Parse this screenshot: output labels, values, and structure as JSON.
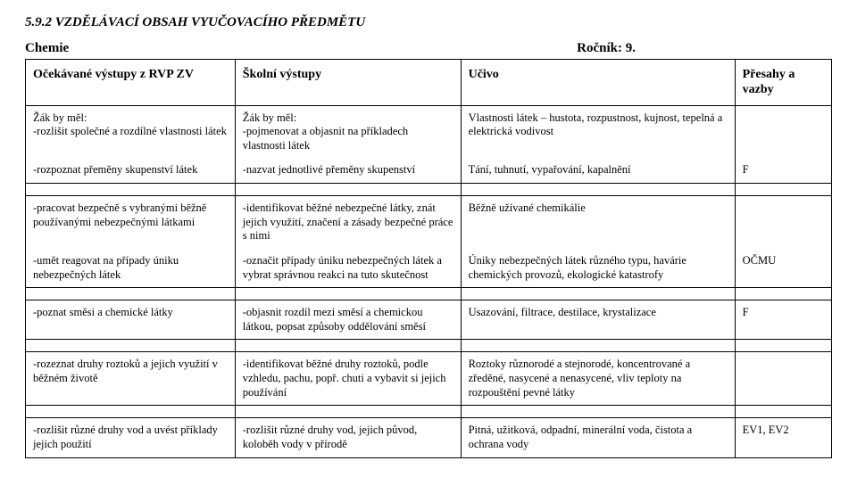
{
  "heading": "5.9.2  VZDĚLÁVACÍ OBSAH VYUČOVACÍHO PŘEDMĚTU",
  "subject": "Chemie",
  "grade_label": "Ročník: 9.",
  "header": {
    "col1": "Očekávané výstupy z RVP ZV",
    "col2": "Školní výstupy",
    "col3": "Učivo",
    "col4": "Přesahy a vazby"
  },
  "rows": [
    {
      "c1": "Žák by měl:\n-rozlišit společné a rozdílné vlastnosti látek",
      "c2": "Žák by měl:\n-pojmenovat a objasnit na příkladech vlastnosti látek",
      "c3": "Vlastnosti látek – hustota, rozpustnost, kujnost, tepelná a elektrická vodivost",
      "c4": ""
    },
    {
      "c1": "-rozpoznat přeměny skupenství látek",
      "c2": "-nazvat jednotlivé přeměny skupenství",
      "c3": "Tání, tuhnutí, vypařování, kapalnění",
      "c4": "F"
    },
    {
      "c1": "-pracovat bezpečně s vybranými běžně používanými nebezpečnými látkami",
      "c2": "-identifikovat běžné nebezpečné látky, znát jejich využití, značení a zásady bezpečné práce s nimi",
      "c3": "Běžně užívané chemikálie",
      "c4": ""
    },
    {
      "c1": "-umět reagovat na případy úniku nebezpečných látek",
      "c2": "-označit případy úniku nebezpečných látek a vybrat správnou reakci na tuto skutečnost",
      "c3": "Úniky nebezpečných látek různého typu, havárie chemických provozů, ekologické katastrofy",
      "c4": "OČMU"
    },
    {
      "c1": "-poznat směsi a chemické látky",
      "c2": "-objasnit rozdíl mezi směsí a chemickou látkou, popsat způsoby oddělování směsí",
      "c3": "Usazování, filtrace, destilace, krystalizace",
      "c4": "F"
    },
    {
      "c1": "-rozeznat druhy roztoků a jejich využití v běžném životě",
      "c2": "-identifikovat běžné druhy roztoků, podle vzhledu, pachu, popř. chuti a vybavit si jejich používání",
      "c3": "Roztoky různorodé a stejnorodé, koncentrované a zředěné, nasycené a nenasycené, vliv teploty na rozpouštění pevné látky",
      "c4": ""
    },
    {
      "c1": "-rozlišit různé druhy vod a uvést příklady jejich použití",
      "c2": "-rozlišit různé druhy vod, jejich původ, koloběh vody v přírodě",
      "c3": "Pitná, užitková, odpadní, minerální voda, čistota a ochrana vody",
      "c4": "EV1, EV2"
    }
  ]
}
